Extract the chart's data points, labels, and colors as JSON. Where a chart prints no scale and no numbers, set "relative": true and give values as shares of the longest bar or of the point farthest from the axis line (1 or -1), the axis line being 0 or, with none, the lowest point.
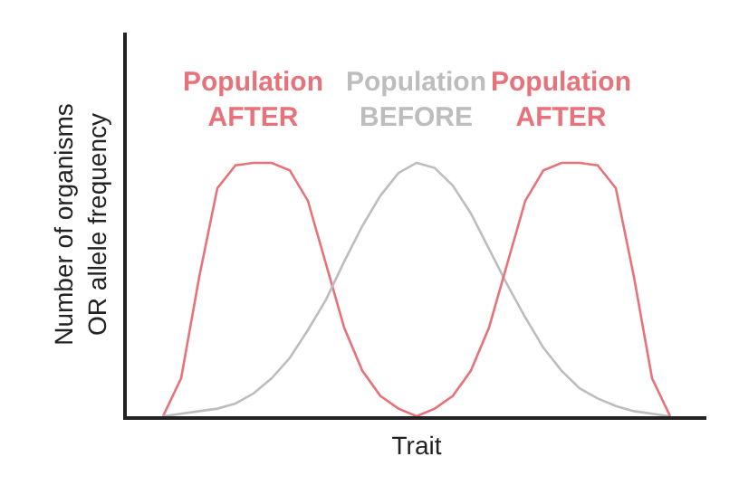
{
  "chart_data": {
    "type": "line",
    "relative": true,
    "xlabel": "Trait",
    "ylabel": "Number of organisms\nOR allele frequency",
    "legend": false,
    "marker": "none",
    "line_style": "solid",
    "categories": [
      null,
      null,
      null,
      null,
      null,
      null,
      null,
      null,
      null,
      null,
      null,
      null,
      null,
      null,
      null,
      null,
      null,
      null,
      null,
      null,
      null,
      null,
      null,
      null,
      null,
      null,
      null,
      null,
      null
    ],
    "series": [
      {
        "name": "Population\nAFTER",
        "color": "#e8727a",
        "values": [
          0,
          0.15,
          0.55,
          0.9,
          0.99,
          1.0,
          1.0,
          0.97,
          0.85,
          0.6,
          0.35,
          0.18,
          0.08,
          0.03,
          0,
          null,
          null,
          null,
          null,
          null,
          null,
          null,
          null,
          null,
          null,
          null,
          null,
          null,
          null
        ]
      },
      {
        "name": "Population\nBEFORE",
        "color": "#bdbdbd",
        "values": [
          0,
          0.01,
          0.02,
          0.03,
          0.05,
          0.09,
          0.15,
          0.23,
          0.34,
          0.46,
          0.61,
          0.75,
          0.87,
          0.96,
          1.0,
          0.98,
          0.91,
          0.8,
          0.66,
          0.52,
          0.39,
          0.27,
          0.18,
          0.11,
          0.07,
          0.04,
          0.02,
          0.01,
          0
        ]
      },
      {
        "name": "Population\nAFTER",
        "color": "#e8727a",
        "values": [
          null,
          null,
          null,
          null,
          null,
          null,
          null,
          null,
          null,
          null,
          null,
          null,
          null,
          null,
          0,
          0.03,
          0.08,
          0.18,
          0.35,
          0.6,
          0.85,
          0.97,
          1.0,
          1.0,
          0.99,
          0.9,
          0.55,
          0.15,
          0
        ]
      }
    ]
  }
}
